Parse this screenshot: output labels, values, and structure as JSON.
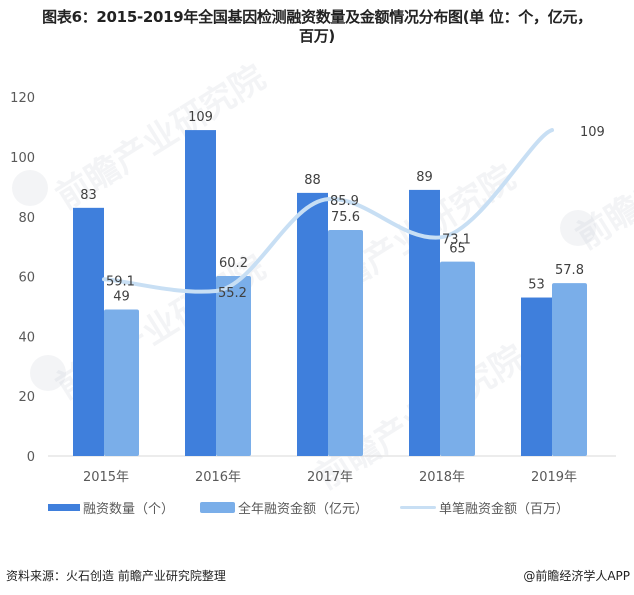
{
  "header": {
    "title_line1": "图表6：2015-2019年全国基因检测融资数量及金额情况分布图(单 位：个，亿元，",
    "title_line2": "百万)"
  },
  "colors": {
    "count_bar": "#3f7fdc",
    "amount_bar": "#7aaee9",
    "avg_line": "#c8dff4",
    "axis": "#d9d9d9",
    "text": "#595959"
  },
  "legend": {
    "items": [
      {
        "label": "融资数量（个）",
        "type": "bar"
      },
      {
        "label": "全年融资金额（亿元）",
        "type": "bar"
      },
      {
        "label": "单笔融资金额（百万）",
        "type": "line"
      }
    ]
  },
  "footer": {
    "source": "资料来源：火石创造 前瞻产业研究院整理",
    "credit": "@前瞻经济学人APP"
  },
  "watermark": {
    "text": "前瞻产业研究院"
  },
  "chart_data": {
    "type": "bar",
    "title": "图表6：2015-2019年全国基因检测融资数量及金额情况分布图(单 位：个，亿元，百万)",
    "xlabel": "",
    "ylabel": "",
    "categories": [
      "2015年",
      "2016年",
      "2017年",
      "2018年",
      "2019年"
    ],
    "series": [
      {
        "name": "融资数量（个）",
        "type": "bar",
        "values": [
          83,
          109,
          88,
          89,
          53
        ]
      },
      {
        "name": "全年融资金额（亿元）",
        "type": "bar",
        "values": [
          49,
          60.2,
          75.6,
          65,
          57.8
        ]
      },
      {
        "name": "单笔融资金额（百万）",
        "type": "line",
        "smooth": true,
        "values": [
          59.1,
          55.2,
          85.9,
          73.1,
          109
        ]
      }
    ],
    "ylim": [
      0,
      120
    ],
    "yticks": [
      0,
      20,
      40,
      60,
      80,
      100,
      120
    ],
    "grid": false,
    "legend_position": "bottom"
  }
}
